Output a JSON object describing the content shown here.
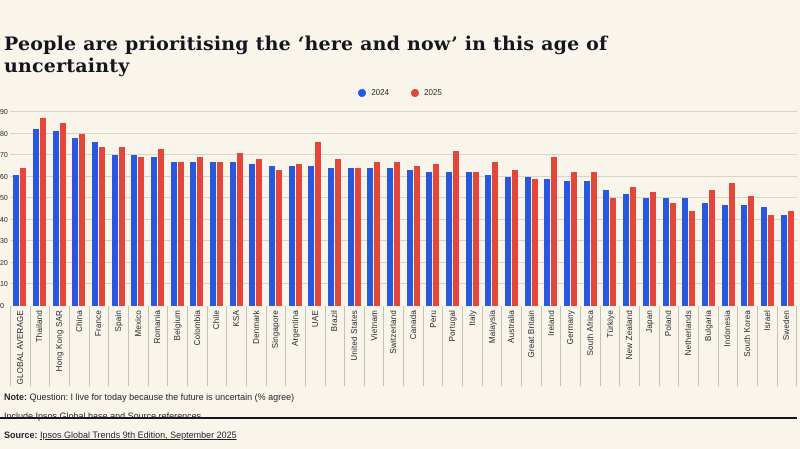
{
  "title": "People are prioritising the ‘here and now’ in this age of uncertainty",
  "colors": {
    "background": "#faf5eb",
    "bar_2024": "#2857e0",
    "bar_2025": "#e2473a",
    "gridline": "#d9d4c9",
    "axis": "#14141c",
    "text": "#1c1e26"
  },
  "chart_data": {
    "type": "bar",
    "title": "People are prioritising the ‘here and now’ in this age of uncertainty",
    "xlabel": "",
    "ylabel": "",
    "ylim": [
      0,
      90
    ],
    "yticks": [
      0,
      10,
      20,
      30,
      40,
      50,
      60,
      70,
      80,
      90
    ],
    "grid": true,
    "legend_position": "top-center",
    "categories": [
      "GLOBAL AVERAGE",
      "Thailand",
      "Hong Kong SAR",
      "China",
      "France",
      "Spain",
      "Mexico",
      "Romania",
      "Belgium",
      "Colombia",
      "Chile",
      "KSA",
      "Denmark",
      "Singapore",
      "Argentina",
      "UAE",
      "Brazil",
      "United States",
      "Vietnam",
      "Switzerland",
      "Canada",
      "Peru",
      "Portugal",
      "Italy",
      "Malaysia",
      "Australia",
      "Great Britain",
      "Ireland",
      "Germany",
      "South Africa",
      "Türkiye",
      "New Zealand",
      "Japan",
      "Poland",
      "Netherlands",
      "Bulgaria",
      "Indonesia",
      "South Korea",
      "Israel",
      "Sweden"
    ],
    "series": [
      {
        "name": "2024",
        "color": "#2857e0",
        "values": [
          61,
          82,
          81,
          78,
          76,
          70,
          70,
          69,
          67,
          67,
          67,
          67,
          66,
          65,
          65,
          65,
          64,
          64,
          64,
          64,
          63,
          62,
          62,
          62,
          61,
          60,
          60,
          59,
          58,
          58,
          54,
          52,
          50,
          50,
          50,
          48,
          47,
          47,
          46,
          42
        ]
      },
      {
        "name": "2025",
        "color": "#e2473a",
        "values": [
          64,
          87,
          85,
          80,
          74,
          74,
          69,
          73,
          67,
          69,
          67,
          71,
          68,
          63,
          66,
          76,
          68,
          64,
          67,
          67,
          65,
          66,
          72,
          62,
          67,
          63,
          59,
          69,
          62,
          62,
          50,
          55,
          53,
          48,
          44,
          54,
          57,
          51,
          42,
          44
        ]
      }
    ]
  },
  "footer": {
    "note_label": "Note:",
    "note_text": "Question: I live for today because the future is uncertain (% agree)",
    "line2": "Include Ipsos Global base and Source references",
    "source_label": "Source:",
    "source_text": "Ipsos Global Trends 9th Edition, September 2025"
  }
}
